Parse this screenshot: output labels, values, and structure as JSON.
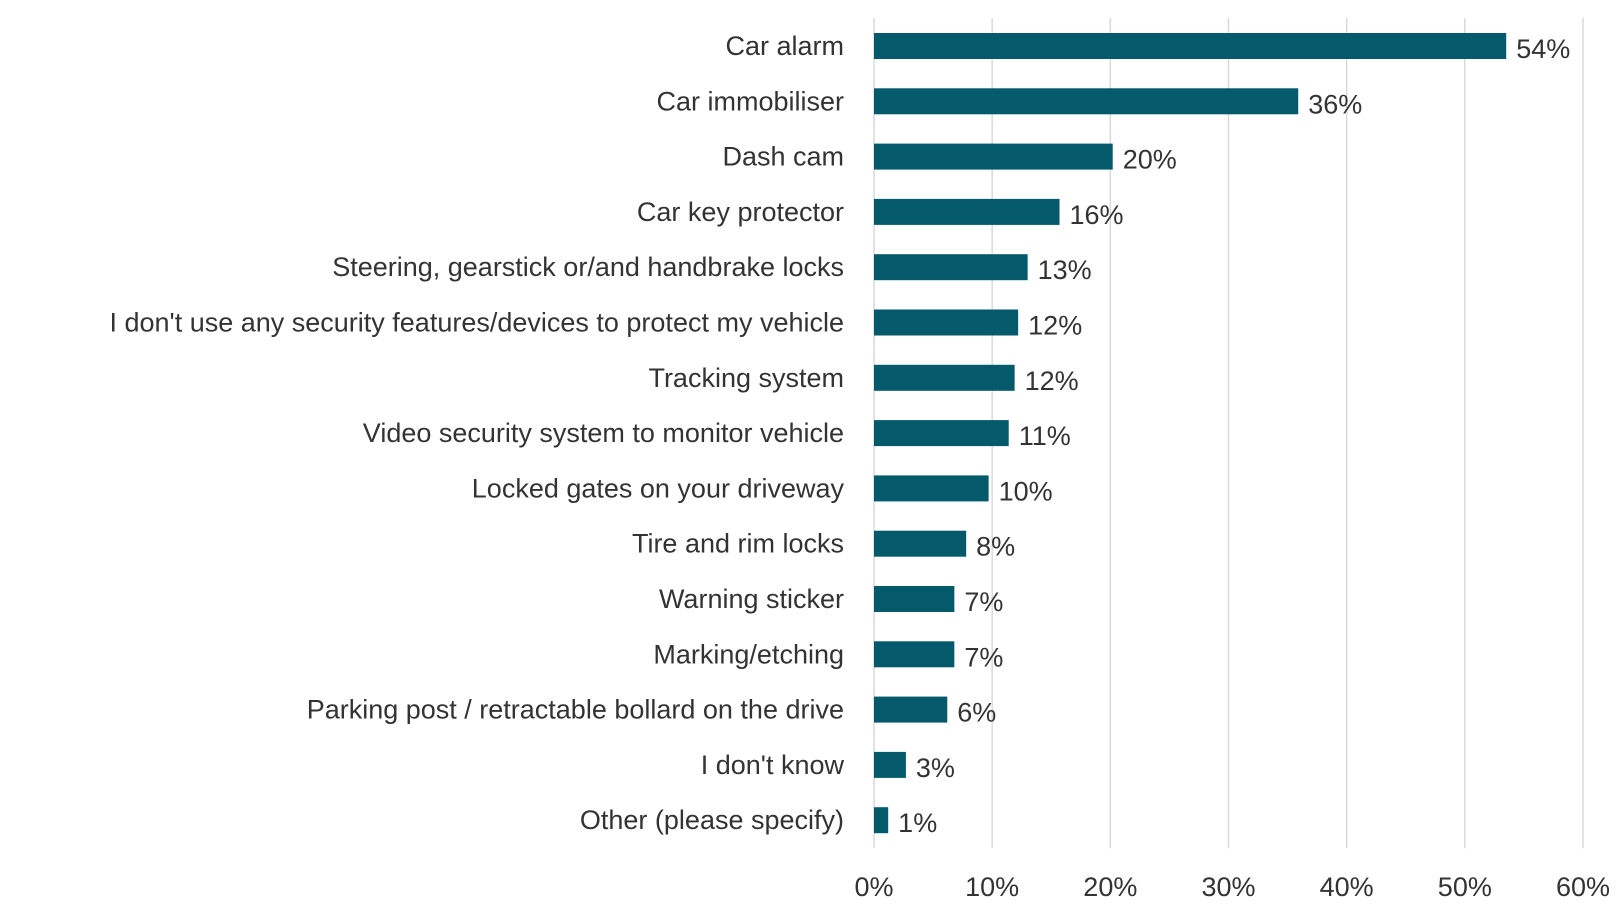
{
  "chart_data": {
    "type": "bar",
    "orientation": "horizontal",
    "title": "",
    "xlabel": "",
    "ylabel": "",
    "categories": [
      "Car alarm",
      "Car immobiliser",
      "Dash cam",
      "Car key protector",
      "Steering, gearstick or/and handbrake locks",
      "I don't use any security features/devices to protect my vehicle",
      "Tracking system",
      "Video security system to monitor vehicle",
      "Locked gates on your driveway",
      "Tire and rim locks",
      "Warning sticker",
      "Marking/etching",
      "Parking post / retractable bollard on the drive",
      "I don't know",
      "Other (please specify)"
    ],
    "values": [
      53.5,
      35.9,
      20.2,
      15.7,
      13.0,
      12.2,
      11.9,
      11.4,
      9.7,
      7.8,
      6.8,
      6.8,
      6.2,
      2.7,
      1.2
    ],
    "value_labels": [
      "54%",
      "36%",
      "20%",
      "16%",
      "13%",
      "12%",
      "12%",
      "11%",
      "10%",
      "8%",
      "7%",
      "7%",
      "6%",
      "3%",
      "1%"
    ],
    "xlim": [
      0,
      60
    ],
    "x_ticks": [
      0,
      10,
      20,
      30,
      40,
      50,
      60
    ],
    "x_tick_labels": [
      "0%",
      "10%",
      "20%",
      "30%",
      "40%",
      "50%",
      "60%"
    ],
    "grid": "vertical",
    "legend": "none",
    "colors": {
      "bar": "#045a6b",
      "grid": "#d9d9d9",
      "text": "#333333"
    }
  }
}
